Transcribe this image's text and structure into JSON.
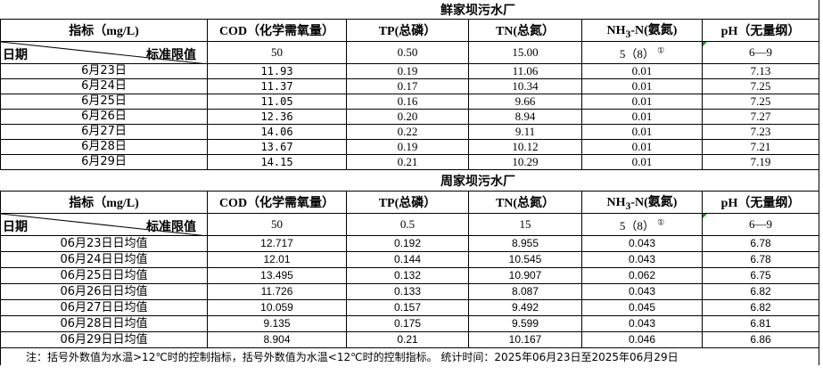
{
  "plants": [
    {
      "name": "鲜家坝污水厂",
      "headers": {
        "indicator": "指标（mg/L)",
        "cod": "COD（化学需氧量）",
        "tp": "TP(总磷）",
        "tn": "TN(总氮）",
        "nh3_pre": "NH",
        "nh3_sub": "3",
        "nh3_post": "-N(氨氮)",
        "ph": "pH（无量纲）"
      },
      "date_label": "日期",
      "limit_label": "标准限值",
      "limits": {
        "cod": "50",
        "tp": "0.50",
        "tn": "15.00",
        "nh3": "5（8）",
        "nh3_note": "①",
        "ph": "6—9"
      },
      "rows": [
        {
          "date": "6月23日",
          "cod": "11.93",
          "tp": "0.19",
          "tn": "11.06",
          "nh3": "0.01",
          "ph": "7.13"
        },
        {
          "date": "6月24日",
          "cod": "11.37",
          "tp": "0.17",
          "tn": "10.34",
          "nh3": "0.01",
          "ph": "7.25"
        },
        {
          "date": "6月25日",
          "cod": "11.05",
          "tp": "0.16",
          "tn": "9.66",
          "nh3": "0.01",
          "ph": "7.25"
        },
        {
          "date": "6月26日",
          "cod": "12.36",
          "tp": "0.20",
          "tn": "8.94",
          "nh3": "0.01",
          "ph": "7.27"
        },
        {
          "date": "6月27日",
          "cod": "14.06",
          "tp": "0.22",
          "tn": "9.11",
          "nh3": "0.01",
          "ph": "7.23"
        },
        {
          "date": "6月28日",
          "cod": "13.67",
          "tp": "0.19",
          "tn": "10.12",
          "nh3": "0.01",
          "ph": "7.21"
        },
        {
          "date": "6月29日",
          "cod": "14.15",
          "tp": "0.21",
          "tn": "10.29",
          "nh3": "0.01",
          "ph": "7.19"
        }
      ]
    },
    {
      "name": "周家坝污水厂",
      "headers": {
        "indicator": "指标（mg/L)",
        "cod": "COD（化学需氧量）",
        "tp": "TP(总磷）",
        "tn": "TN(总氮）",
        "nh3_pre": "NH",
        "nh3_sub": "3",
        "nh3_post": "-N(氨氮)",
        "ph": "pH（无量纲）"
      },
      "date_label": "日期",
      "limit_label": "标准限值",
      "limits": {
        "cod": "50",
        "tp": "0.5",
        "tn": "15",
        "nh3": "5（8）",
        "nh3_note": "①",
        "ph": "6—9"
      },
      "rows": [
        {
          "date": "06月23日日均值",
          "cod": "12.717",
          "tp": "0.192",
          "tn": "8.955",
          "nh3": "0.043",
          "ph": "6.78"
        },
        {
          "date": "06月24日日均值",
          "cod": "12.01",
          "tp": "0.144",
          "tn": "10.545",
          "nh3": "0.043",
          "ph": "6.78"
        },
        {
          "date": "06月25日日均值",
          "cod": "13.495",
          "tp": "0.132",
          "tn": "10.907",
          "nh3": "0.062",
          "ph": "6.75"
        },
        {
          "date": "06月26日日均值",
          "cod": "11.726",
          "tp": "0.133",
          "tn": "8.087",
          "nh3": "0.043",
          "ph": "6.82"
        },
        {
          "date": "06月27日日均值",
          "cod": "10.059",
          "tp": "0.157",
          "tn": "9.492",
          "nh3": "0.045",
          "ph": "6.82"
        },
        {
          "date": "06月28日日均值",
          "cod": "9.135",
          "tp": "0.175",
          "tn": "9.599",
          "nh3": "0.043",
          "ph": "6.81"
        },
        {
          "date": "06月29日日均值",
          "cod": "8.904",
          "tp": "0.21",
          "tn": "10.167",
          "nh3": "0.046",
          "ph": "6.86"
        }
      ]
    }
  ],
  "note": "注：括号外数值为水温>12℃时的控制指标，括号外数值为水温<12℃时的控制指标。   统计时间：2025年06月23日至2025年06月29日"
}
